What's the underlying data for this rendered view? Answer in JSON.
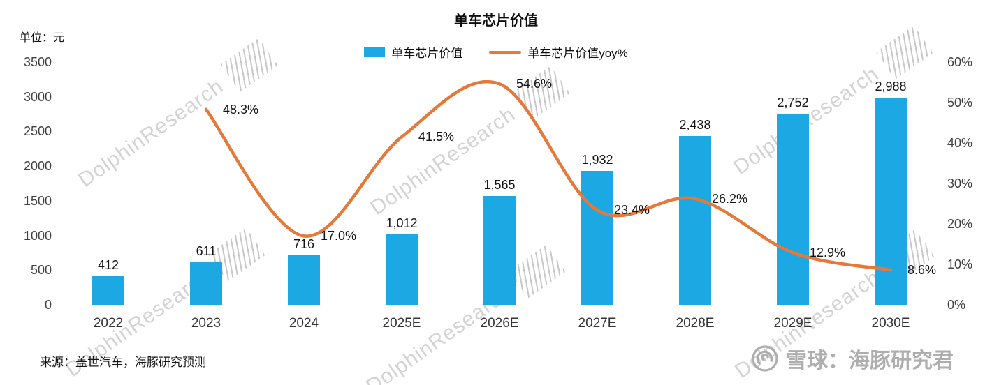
{
  "chart": {
    "title": "单车芯片价值",
    "unit_label": "单位：元",
    "watermark": "DolphinResearch",
    "source": "来源：盖世汽车，海豚研究预测",
    "brand": "雪球：海豚研究君",
    "bar_color": "#1CA8E3",
    "line_color": "#E5793A",
    "legend": [
      {
        "label": "单车芯片价值"
      },
      {
        "label": "单车芯片价值yoy%"
      }
    ]
  },
  "chart_data": {
    "type": "bar+line",
    "title": "单车芯片价值",
    "categories": [
      "2022",
      "2023",
      "2024",
      "2025E",
      "2026E",
      "2027E",
      "2028E",
      "2029E",
      "2030E"
    ],
    "series": [
      {
        "name": "单车芯片价值",
        "type": "bar",
        "axis": "left",
        "values": [
          412,
          611,
          716,
          1012,
          1565,
          1932,
          2438,
          2752,
          2988
        ],
        "labels": [
          "412",
          "611",
          "716",
          "1,012",
          "1,565",
          "1,932",
          "2,438",
          "2,752",
          "2,988"
        ]
      },
      {
        "name": "单车芯片价值yoy%",
        "type": "line",
        "axis": "right",
        "values": [
          null,
          48.3,
          17.0,
          41.5,
          54.6,
          23.4,
          26.2,
          12.9,
          8.6
        ],
        "labels": [
          null,
          "48.3%",
          "17.0%",
          "41.5%",
          "54.6%",
          "23.4%",
          "26.2%",
          "12.9%",
          "8.6%"
        ]
      }
    ],
    "left_axis": {
      "min": 0,
      "max": 3500,
      "step": 500,
      "ticks": [
        "0",
        "500",
        "1000",
        "1500",
        "2000",
        "2500",
        "3000",
        "3500"
      ]
    },
    "right_axis": {
      "min": 0,
      "max": 60,
      "step": 10,
      "ticks": [
        "0%",
        "10%",
        "20%",
        "30%",
        "40%",
        "50%",
        "60%"
      ]
    },
    "grid": false,
    "legend_position": "top"
  }
}
